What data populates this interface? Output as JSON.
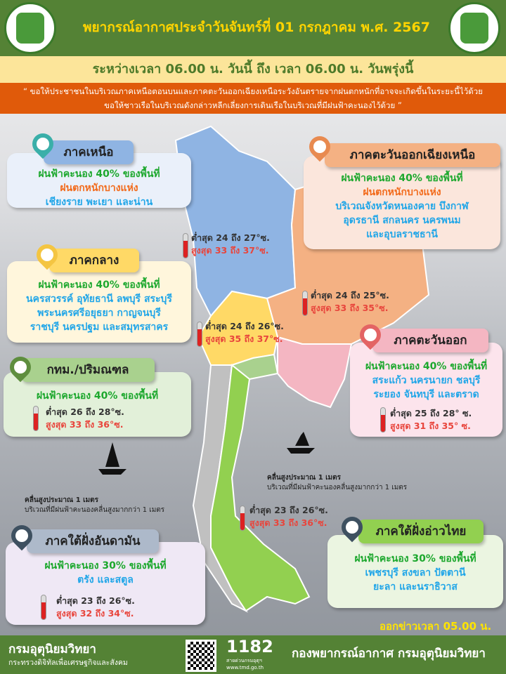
{
  "header": {
    "title": "พยากรณ์อากาศประจำวันจันทร์ที่ 01 กรกฎาคม พ.ศ. 2567",
    "left_logo": "กระทรวงดิจิทัลเพื่อเศรษฐกิจและสังคม",
    "right_logo": "กรมอุตุนิยมวิทยา METEOROLOGICAL DEPARTMENT"
  },
  "period": "ระหว่างเวลา 06.00 น. วันนี้ ถึง เวลา 06.00 น. วันพรุ่งนี้",
  "warning": {
    "line1": "“ ขอให้ประชาชนในบริเวณภาคเหนือตอนบนและภาคตะวันออกเฉียงเหนือระวังอันตรายจากฝนตกหนักที่อาจจะเกิดขึ้นในระยะนี้ไว้ด้วย",
    "line2": "ขอให้ชาวเรือในบริเวณดังกล่าวหลีกเลี่ยงการเดินเรือในบริเวณที่มีฝนฟ้าคะนองไว้ด้วย ”"
  },
  "regions": {
    "north": {
      "name": "ภาคเหนือ",
      "rain": "ฝนฟ้าคะนอง 40% ของพื้นที่",
      "heavy": "ฝนตกหนักบางแห่ง",
      "areas": [
        "เชียงราย พะเยา และน่าน"
      ],
      "min": "ต่ำสุด 24 ถึง 27°ซ.",
      "max": "สูงสุด 33 ถึง 37°ซ.",
      "color": "#8FB4E3"
    },
    "northeast": {
      "name": "ภาคตะวันออกเฉียงเหนือ",
      "rain": "ฝนฟ้าคะนอง 40% ของพื้นที่",
      "heavy": "ฝนตกหนักบางแห่ง",
      "areas": [
        "บริเวณจังหวัดหนองคาย บึงกาฬ",
        "อุดรธานี สกลนคร นครพนม",
        "และอุบลราชธานี"
      ],
      "min": "ต่ำสุด 24 ถึง 25°ซ.",
      "max": "สูงสุด 33 ถึง 35°ซ.",
      "color": "#F4B183"
    },
    "central": {
      "name": "ภาคกลาง",
      "rain": "ฝนฟ้าคะนอง 40% ของพื้นที่",
      "areas": [
        "นครสวรรค์ อุทัยธานี ลพบุรี สระบุรี",
        "พระนครศรีอยุธยา กาญจนบุรี",
        "ราชบุรี นครปฐม และสมุทรสาคร"
      ],
      "min": "ต่ำสุด 24 ถึง 26°ซ.",
      "max": "สูงสุด 35 ถึง 37°ซ.",
      "color": "#FFD966"
    },
    "bangkok": {
      "name": "กทม./ปริมณฑล",
      "rain": "ฝนฟ้าคะนอง 40% ของพื้นที่",
      "min": "ต่ำสุด 26 ถึง 28°ซ.",
      "max": "สูงสุด 33 ถึง 36°ซ.",
      "color": "#A9D18E"
    },
    "east": {
      "name": "ภาคตะวันออก",
      "rain": "ฝนฟ้าคะนอง 40% ของพื้นที่",
      "areas": [
        "สระแก้ว นครนายก ชลบุรี",
        "ระยอง จันทบุรี และตราด"
      ],
      "min": "ต่ำสุด 25 ถึง 28° ซ.",
      "max": "สูงสุด 31 ถึง 35° ซ.",
      "color": "#F4B6C2"
    },
    "south_west": {
      "name": "ภาคใต้ฝั่งอันดามัน",
      "rain": "ฝนฟ้าคะนอง 30% ของพื้นที่",
      "areas": [
        "ตรัง และสตูล"
      ],
      "min": "ต่ำสุด 23 ถึง 26°ซ.",
      "max": "สูงสุด 32 ถึง 34°ซ.",
      "color": "#ADB9CA"
    },
    "south_east": {
      "name": "ภาคใต้ฝั่งอ่าวไทย",
      "rain": "ฝนฟ้าคะนอง 30% ของพื้นที่",
      "areas": [
        "เพชรบุรี สงขลา ปัตตานี",
        "ยะลา และนราธิวาส"
      ],
      "min": "ต่ำสุด 23 ถึง 26°ซ.",
      "max": "สูงสุด 33 ถึง 36°ซ.",
      "color": "#92D050"
    }
  },
  "waves": {
    "andaman": {
      "title": "คลื่นสูงประมาณ 1 เมตร",
      "desc": "บริเวณที่มีฝนฟ้าคะนองคลื่นสูงมากกว่า 1 เมตร"
    },
    "gulf": {
      "title": "คลื่นสูงประมาณ 1 เมตร",
      "desc": "บริเวณที่มีฝนฟ้าคะนองคลื่นสูงมากกว่า 1 เมตร"
    }
  },
  "issued": "ออกข่าวเวลา 05.00 น.",
  "footer": {
    "org": "กรมอุตุนิยมวิทยา",
    "ministry": "กระทรวงดิจิทัลเพื่อเศรษฐกิจและสังคม",
    "hotline": "1182",
    "hotline_label": "สายด่วนกรมอุตุฯ",
    "website": "www.tmd.go.th",
    "division": "กองพยากรณ์อากาศ กรมอุตุนิยมวิทยา"
  }
}
